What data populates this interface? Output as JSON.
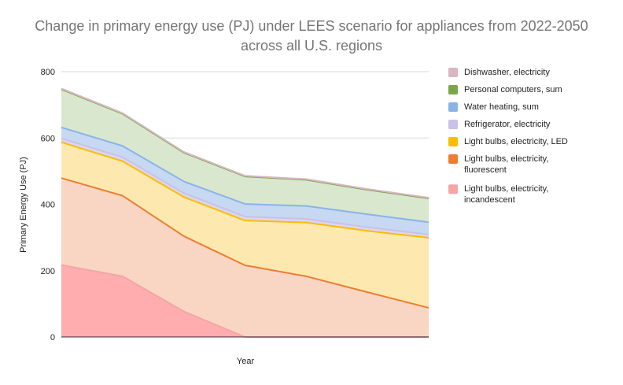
{
  "chart_data": {
    "type": "area",
    "stacked": true,
    "title_lines": [
      "Change in primary energy use (PJ) under LEES scenario for appliances from 2022-2050",
      "across all U.S. regions"
    ],
    "xlabel": "Year",
    "ylabel": "Primary Energy Use (PJ)",
    "x_tick_labels": [],
    "ylim": [
      0,
      800
    ],
    "y_ticks": [
      0,
      200,
      400,
      600,
      800
    ],
    "grid": "horizontal",
    "legend_position": "right",
    "x": [
      0,
      1,
      2,
      3,
      4,
      5,
      6
    ],
    "series": [
      {
        "name": "Light bulbs, electricity, incandescent",
        "legend_lines": [
          "Light bulbs, electricity,",
          "incandescent"
        ],
        "values": [
          217,
          183,
          77,
          0,
          0,
          0,
          0
        ],
        "fill": "#ffadaf",
        "line": "#f4a6a6"
      },
      {
        "name": "Light bulbs, electricity, fluorescent",
        "legend_lines": [
          "Light bulbs, electricity,",
          "fluorescent"
        ],
        "values": [
          262,
          243,
          227,
          216,
          183,
          135,
          88
        ],
        "fill": "#f9d6c4",
        "line": "#ee7d31"
      },
      {
        "name": "Light bulbs, electricity, LED",
        "legend_lines": [
          "Light bulbs, electricity, LED"
        ],
        "values": [
          108,
          104,
          118,
          135,
          162,
          185,
          211
        ],
        "fill": "#fde9b0",
        "line": "#fbbd04"
      },
      {
        "name": "Refrigerator, electricity",
        "legend_lines": [
          "Refrigerator, electricity"
        ],
        "values": [
          12,
          12,
          12,
          12,
          11,
          11,
          10
        ],
        "fill": "#dcd5ee",
        "line": "#c9c1e6"
      },
      {
        "name": "Water heating, sum",
        "legend_lines": [
          "Water heating, sum"
        ],
        "values": [
          33,
          34,
          35,
          38,
          39,
          39,
          37
        ],
        "fill": "#c7d8f2",
        "line": "#8ab4e8"
      },
      {
        "name": "Personal computers, sum",
        "legend_lines": [
          "Personal computers, sum"
        ],
        "values": [
          115,
          97,
          87,
          83,
          79,
          74,
          72
        ],
        "fill": "#d8e7cd",
        "line": "#7aa64a"
      },
      {
        "name": "Dishwasher, electricity",
        "legend_lines": [
          "Dishwasher, electricity"
        ],
        "values": [
          2,
          2,
          2,
          2,
          2,
          2,
          2
        ],
        "fill": "#ead1dc",
        "line": "#d9b6c4"
      }
    ]
  }
}
